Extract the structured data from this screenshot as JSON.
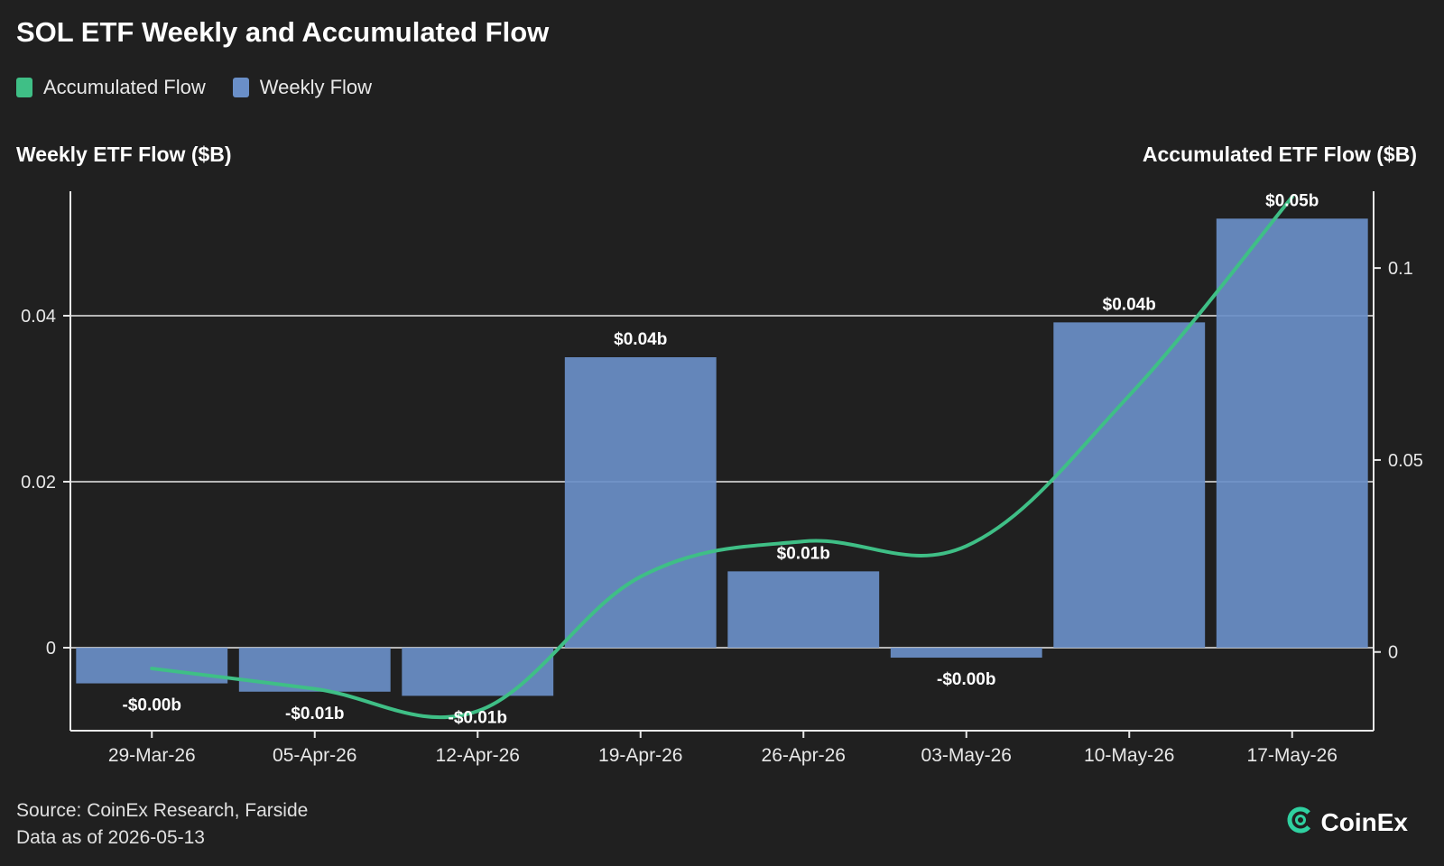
{
  "header": {
    "title": "SOL ETF Weekly and Accumulated Flow"
  },
  "legend": [
    {
      "label": "Accumulated Flow",
      "color": "#3fbf86"
    },
    {
      "label": "Weekly Flow",
      "color": "#6a8fc8"
    }
  ],
  "axes": {
    "left_title": "Weekly ETF Flow ($B)",
    "right_title": "Accumulated ETF Flow ($B)"
  },
  "chart_data": {
    "type": "bar",
    "categories": [
      "29-Mar-26",
      "05-Apr-26",
      "12-Apr-26",
      "19-Apr-26",
      "26-Apr-26",
      "03-May-26",
      "10-May-26",
      "17-May-26"
    ],
    "series": [
      {
        "name": "Weekly Flow",
        "type": "bar",
        "axis": "left",
        "color": "#6a8fc8",
        "values": [
          -0.0043,
          -0.0053,
          -0.0058,
          0.035,
          0.0092,
          -0.0012,
          0.0392,
          0.0517
        ],
        "labels": [
          "-$0.00b",
          "-$0.01b",
          "-$0.01b",
          "$0.04b",
          "$0.01b",
          "-$0.00b",
          "$0.04b",
          "$0.05b"
        ]
      },
      {
        "name": "Accumulated Flow",
        "type": "line",
        "axis": "right",
        "color": "#3fbf86",
        "values": [
          -0.0043,
          -0.0096,
          -0.0154,
          0.0196,
          0.0288,
          0.0276,
          0.0668,
          0.1185
        ]
      }
    ],
    "left_axis": {
      "ticks": [
        0,
        0.02,
        0.04
      ],
      "tick_labels": [
        "0",
        "0.02",
        "0.04"
      ],
      "ylim": [
        -0.01,
        0.055
      ]
    },
    "right_axis": {
      "ticks": [
        0,
        0.05,
        0.1
      ],
      "tick_labels": [
        "0",
        "0.05",
        "0.1"
      ],
      "ylim": [
        -0.0205,
        0.12
      ]
    },
    "grid": "horizontal",
    "legend_position": "top-left"
  },
  "footer": {
    "source": "Source: CoinEx Research, Farside",
    "date": "Data as of 2026-05-13"
  },
  "brand": {
    "name": "CoinEx",
    "icon": "coinex-logo-icon"
  }
}
